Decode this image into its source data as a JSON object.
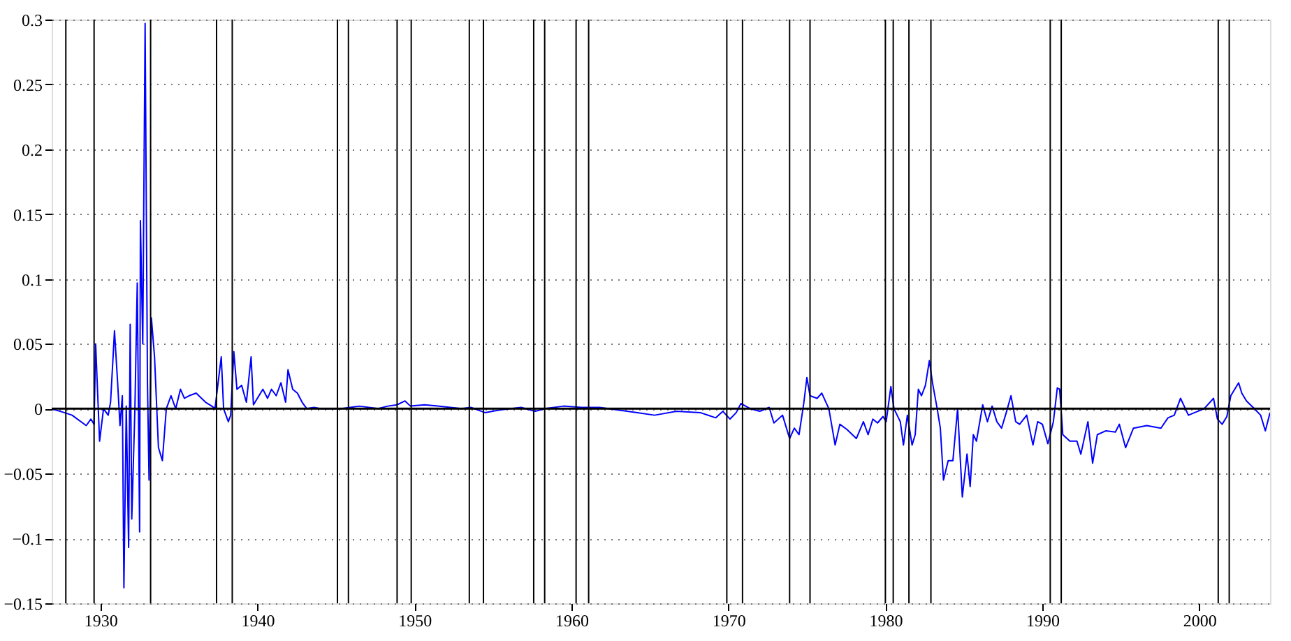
{
  "chart_data": {
    "type": "line",
    "xlim": [
      1926.9,
      2004.5
    ],
    "xticks": [
      1930,
      1940,
      1950,
      1960,
      1970,
      1980,
      1990,
      2000
    ],
    "ylim": [
      -0.15,
      0.3
    ],
    "yticks": [
      -0.15,
      -0.1,
      -0.05,
      0,
      0.05,
      0.1,
      0.15,
      0.2,
      0.25,
      0.3
    ],
    "grid": "y",
    "marker": "none",
    "line_style": "solid",
    "series": [
      {
        "color": "#0000ff",
        "x": [
          1926.9,
          1927.7,
          1928.2,
          1929.1,
          1929.4,
          1929.6,
          1929.7,
          1929.95,
          1930.2,
          1930.5,
          1930.65,
          1930.9,
          1931.1,
          1931.25,
          1931.4,
          1931.5,
          1931.65,
          1931.8,
          1931.9,
          1932.0,
          1932.2,
          1932.35,
          1932.5,
          1932.55,
          1932.7,
          1932.85,
          1933.0,
          1933.1,
          1933.25,
          1933.45,
          1933.7,
          1933.95,
          1934.2,
          1934.5,
          1934.8,
          1935.1,
          1935.35,
          1935.65,
          1936.1,
          1936.7,
          1937.1,
          1937.3,
          1937.7,
          1937.85,
          1938.15,
          1938.3,
          1938.5,
          1938.7,
          1939.0,
          1939.3,
          1939.6,
          1939.75,
          1940.1,
          1940.35,
          1940.65,
          1940.9,
          1941.2,
          1941.5,
          1941.8,
          1941.95,
          1942.25,
          1942.55,
          1942.85,
          1943.15,
          1943.6,
          1944.0,
          1945.35,
          1945.9,
          1946.5,
          1947.7,
          1948.3,
          1948.9,
          1949.4,
          1949.75,
          1950.65,
          1951.5,
          1953.0,
          1953.6,
          1954.5,
          1955.4,
          1956.8,
          1957.7,
          1958.3,
          1959.5,
          1960.65,
          1961.8,
          1963.0,
          1964.2,
          1965.3,
          1966.7,
          1968.2,
          1969.2,
          1969.65,
          1970.1,
          1970.5,
          1970.8,
          1971.4,
          1972.0,
          1972.6,
          1972.9,
          1973.45,
          1973.9,
          1974.2,
          1974.5,
          1974.8,
          1975.0,
          1975.2,
          1975.65,
          1975.95,
          1976.4,
          1976.8,
          1977.1,
          1977.55,
          1978.15,
          1978.6,
          1978.9,
          1979.2,
          1979.5,
          1979.85,
          1980.05,
          1980.35,
          1980.55,
          1980.95,
          1981.15,
          1981.4,
          1981.7,
          1981.9,
          1982.1,
          1982.3,
          1982.55,
          1982.8,
          1983.0,
          1983.3,
          1983.5,
          1983.7,
          1984.0,
          1984.3,
          1984.6,
          1984.9,
          1985.2,
          1985.4,
          1985.6,
          1985.8,
          1986.2,
          1986.5,
          1986.8,
          1987.1,
          1987.4,
          1987.7,
          1988.0,
          1988.3,
          1988.55,
          1989.0,
          1989.4,
          1989.7,
          1990.0,
          1990.35,
          1990.7,
          1990.95,
          1991.1,
          1991.3,
          1991.75,
          1992.2,
          1992.45,
          1992.9,
          1993.2,
          1993.5,
          1994.05,
          1994.65,
          1994.9,
          1995.3,
          1995.8,
          1996.65,
          1997.55,
          1998.0,
          1998.4,
          1998.8,
          1999.3,
          1999.7,
          2000.3,
          2000.9,
          2001.15,
          2001.45,
          2001.75,
          2002.0,
          2002.5,
          2002.7,
          2003.0,
          2003.5,
          2003.9,
          2004.2,
          2004.5
        ],
        "values": [
          0,
          -0.003,
          -0.005,
          -0.013,
          -0.008,
          -0.012,
          0.05,
          -0.025,
          0,
          -0.005,
          0.005,
          0.06,
          0.02,
          -0.013,
          0.01,
          -0.138,
          0.002,
          -0.107,
          0.065,
          -0.085,
          0,
          0.097,
          -0.095,
          0.145,
          0.05,
          0.297,
          0.02,
          -0.055,
          0.07,
          0.04,
          -0.03,
          -0.04,
          0,
          0.01,
          0,
          0.015,
          0.008,
          0.01,
          0.012,
          0.005,
          0.002,
          0,
          0.04,
          0,
          -0.01,
          -0.005,
          0.044,
          0.015,
          0.018,
          0.005,
          0.04,
          0.003,
          0.01,
          0.015,
          0.008,
          0.015,
          0.01,
          0.02,
          0.005,
          0.03,
          0.015,
          0.012,
          0.005,
          0,
          0.001,
          0,
          0,
          0.001,
          0.002,
          0,
          0.002,
          0.003,
          0.006,
          0.002,
          0.003,
          0.002,
          0,
          0.001,
          -0.003,
          -0.001,
          0.001,
          -0.002,
          0,
          0.002,
          0.001,
          0.001,
          -0.001,
          -0.003,
          -0.005,
          -0.002,
          -0.003,
          -0.007,
          -0.002,
          -0.008,
          -0.003,
          0.004,
          0,
          -0.002,
          0.001,
          -0.011,
          -0.005,
          -0.023,
          -0.015,
          -0.02,
          0.004,
          0.024,
          0.01,
          0.008,
          0.012,
          0,
          -0.028,
          -0.012,
          -0.016,
          -0.023,
          -0.01,
          -0.02,
          -0.008,
          -0.011,
          -0.006,
          -0.01,
          0.017,
          0,
          -0.01,
          -0.028,
          -0.005,
          -0.028,
          -0.02,
          0.015,
          0.01,
          0.018,
          0.037,
          0.02,
          0,
          -0.015,
          -0.055,
          -0.04,
          -0.04,
          0,
          -0.068,
          -0.035,
          -0.06,
          -0.02,
          -0.025,
          0.003,
          -0.01,
          0.002,
          -0.01,
          -0.015,
          -0.003,
          0.01,
          -0.01,
          -0.012,
          -0.005,
          -0.028,
          -0.01,
          -0.012,
          -0.027,
          -0.01,
          0.016,
          0.015,
          -0.02,
          -0.025,
          -0.025,
          -0.035,
          -0.01,
          -0.042,
          -0.02,
          -0.017,
          -0.018,
          -0.012,
          -0.03,
          -0.015,
          -0.013,
          -0.015,
          -0.007,
          -0.005,
          0.008,
          -0.005,
          -0.003,
          0,
          0.008,
          -0.008,
          -0.012,
          -0.006,
          0.01,
          0.02,
          0.012,
          0.006,
          0,
          -0.005,
          -0.017,
          -0.003
        ]
      }
    ],
    "ref_lines": [
      {
        "axis": "y",
        "value": 0,
        "color": "#000000"
      },
      {
        "axis": "x",
        "value": 1927.8,
        "color": "#000000"
      },
      {
        "axis": "x",
        "value": 1929.6,
        "color": "#000000"
      },
      {
        "axis": "x",
        "value": 1933.2,
        "color": "#000000"
      },
      {
        "axis": "x",
        "value": 1937.4,
        "color": "#000000"
      },
      {
        "axis": "x",
        "value": 1938.4,
        "color": "#000000"
      },
      {
        "axis": "x",
        "value": 1945.1,
        "color": "#000000"
      },
      {
        "axis": "x",
        "value": 1945.8,
        "color": "#000000"
      },
      {
        "axis": "x",
        "value": 1948.9,
        "color": "#000000"
      },
      {
        "axis": "x",
        "value": 1949.8,
        "color": "#000000"
      },
      {
        "axis": "x",
        "value": 1953.5,
        "color": "#000000"
      },
      {
        "axis": "x",
        "value": 1954.4,
        "color": "#000000"
      },
      {
        "axis": "x",
        "value": 1957.6,
        "color": "#000000"
      },
      {
        "axis": "x",
        "value": 1958.3,
        "color": "#000000"
      },
      {
        "axis": "x",
        "value": 1960.3,
        "color": "#000000"
      },
      {
        "axis": "x",
        "value": 1961.1,
        "color": "#000000"
      },
      {
        "axis": "x",
        "value": 1969.9,
        "color": "#000000"
      },
      {
        "axis": "x",
        "value": 1970.9,
        "color": "#000000"
      },
      {
        "axis": "x",
        "value": 1973.9,
        "color": "#000000"
      },
      {
        "axis": "x",
        "value": 1975.2,
        "color": "#000000"
      },
      {
        "axis": "x",
        "value": 1980.0,
        "color": "#000000"
      },
      {
        "axis": "x",
        "value": 1980.5,
        "color": "#000000"
      },
      {
        "axis": "x",
        "value": 1981.5,
        "color": "#000000"
      },
      {
        "axis": "x",
        "value": 1982.9,
        "color": "#000000"
      },
      {
        "axis": "x",
        "value": 1990.5,
        "color": "#000000"
      },
      {
        "axis": "x",
        "value": 1991.2,
        "color": "#000000"
      },
      {
        "axis": "x",
        "value": 2001.2,
        "color": "#000000"
      },
      {
        "axis": "x",
        "value": 2001.9,
        "color": "#000000"
      }
    ]
  }
}
